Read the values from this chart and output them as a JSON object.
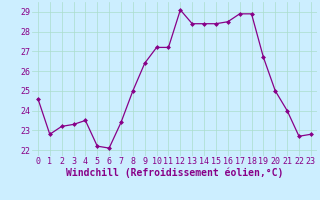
{
  "x": [
    0,
    1,
    2,
    3,
    4,
    5,
    6,
    7,
    8,
    9,
    10,
    11,
    12,
    13,
    14,
    15,
    16,
    17,
    18,
    19,
    20,
    21,
    22,
    23
  ],
  "y": [
    24.6,
    22.8,
    23.2,
    23.3,
    23.5,
    22.2,
    22.1,
    23.4,
    25.0,
    26.4,
    27.2,
    27.2,
    29.1,
    28.4,
    28.4,
    28.4,
    28.5,
    28.9,
    28.9,
    26.7,
    25.0,
    24.0,
    22.7,
    22.8
  ],
  "line_color": "#880088",
  "marker": "D",
  "marker_size": 2.5,
  "bg_color": "#cceeff",
  "grid_color": "#aaddcc",
  "xlabel": "Windchill (Refroidissement éolien,°C)",
  "xlabel_fontsize": 7,
  "xlabel_color": "#880088",
  "yticks": [
    22,
    23,
    24,
    25,
    26,
    27,
    28,
    29
  ],
  "xticks": [
    0,
    1,
    2,
    3,
    4,
    5,
    6,
    7,
    8,
    9,
    10,
    11,
    12,
    13,
    14,
    15,
    16,
    17,
    18,
    19,
    20,
    21,
    22,
    23
  ],
  "ylim": [
    21.7,
    29.5
  ],
  "xlim": [
    -0.5,
    23.5
  ],
  "tick_fontsize": 6,
  "tick_color": "#880088"
}
